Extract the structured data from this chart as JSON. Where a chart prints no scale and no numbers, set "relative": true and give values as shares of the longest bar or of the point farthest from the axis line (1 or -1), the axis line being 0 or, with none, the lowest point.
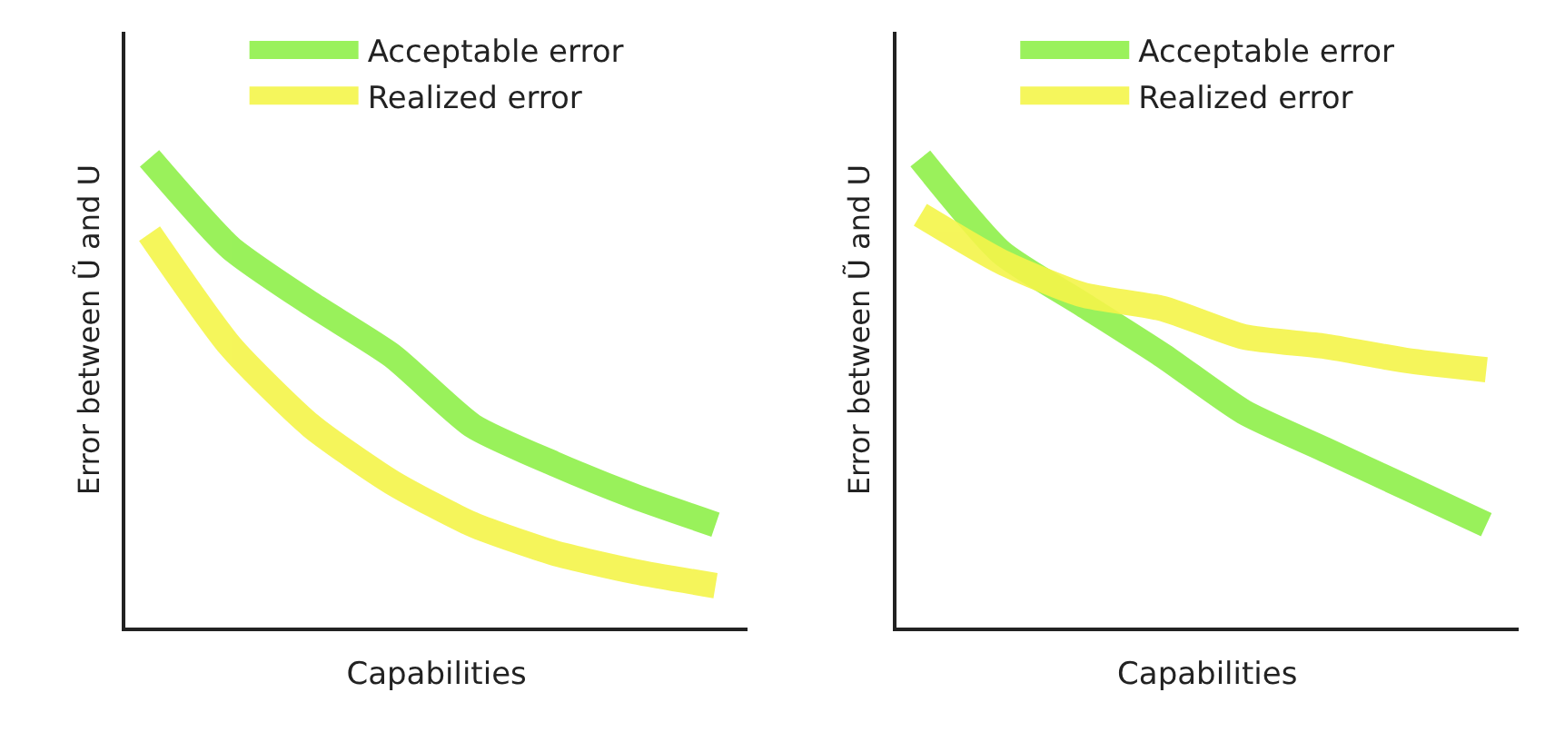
{
  "chart_data": [
    {
      "type": "line",
      "relative": true,
      "xlabel": "Capabilities",
      "ylabel": "Error between Ũ and U",
      "legend": "top",
      "line_style": "solid",
      "categories": [
        null,
        null,
        null,
        null,
        null,
        null,
        null,
        null
      ],
      "series": [
        {
          "name": "Acceptable error",
          "color": "#8ff04a",
          "values": [
            1.0,
            0.81,
            0.69,
            0.58,
            0.43,
            0.35,
            0.28,
            0.22
          ]
        },
        {
          "name": "Realized error",
          "color": "#f4f54a",
          "values": [
            0.84,
            0.6,
            0.43,
            0.31,
            0.22,
            0.16,
            0.12,
            0.09
          ]
        }
      ]
    },
    {
      "type": "line",
      "relative": true,
      "xlabel": "Capabilities",
      "ylabel": "Error between Ũ and U",
      "legend": "top",
      "line_style": "solid",
      "categories": [
        null,
        null,
        null,
        null,
        null,
        null,
        null,
        null
      ],
      "series": [
        {
          "name": "Acceptable error",
          "color": "#8ff04a",
          "values": [
            1.0,
            0.8,
            0.69,
            0.58,
            0.46,
            0.38,
            0.3,
            0.22
          ]
        },
        {
          "name": "Realized error",
          "color": "#f4f54a",
          "values": [
            0.88,
            0.78,
            0.71,
            0.68,
            0.62,
            0.6,
            0.57,
            0.55
          ]
        }
      ]
    }
  ]
}
